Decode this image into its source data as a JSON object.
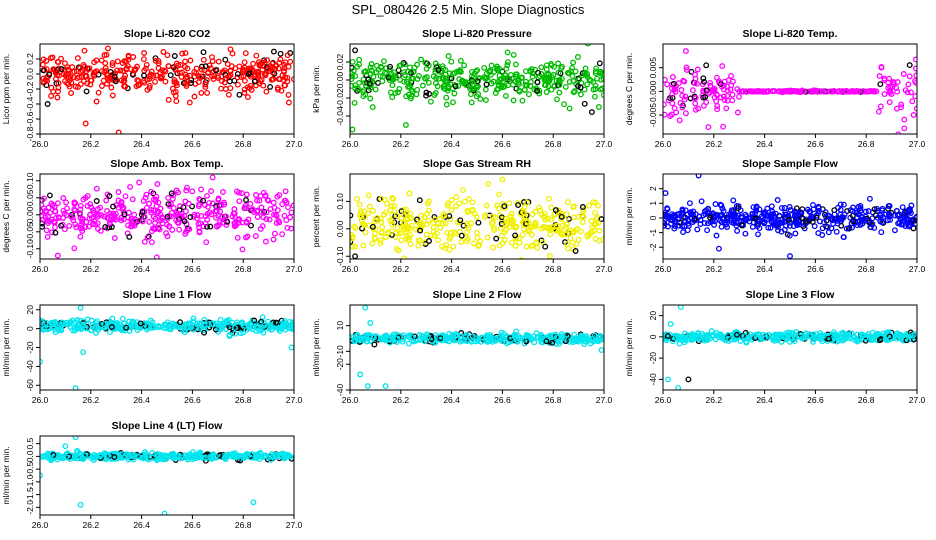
{
  "figure": {
    "title": "SPL_080426  2.5 Min. Slope Diagnostics",
    "overlay_color": "#000000"
  },
  "chart_data": [
    {
      "type": "scatter",
      "title": "Slope Li-820 CO2",
      "ylabel": "Licor ppm per min.",
      "xlim": [
        26.0,
        27.0
      ],
      "ylim": [
        -0.8,
        0.4
      ],
      "x_ticks": [
        "26.0",
        "26.2",
        "26.4",
        "26.6",
        "26.8",
        "27.0"
      ],
      "y_ticks": [
        {
          "value": -0.8,
          "label": "-0.8"
        },
        {
          "value": -0.6,
          "label": "-0.6"
        },
        {
          "value": -0.4,
          "label": "-0.4"
        },
        {
          "value": -0.2,
          "label": "-0.2"
        },
        {
          "value": 0.0,
          "label": "0.0"
        },
        {
          "value": 0.2,
          "label": "0.2"
        }
      ],
      "series_color": "#ff0000",
      "spread": 0.14,
      "center": 0.0,
      "n_points": 420,
      "outliers": [
        {
          "x": 26.18,
          "y": -0.66,
          "color": "#ff0000"
        },
        {
          "x": 26.31,
          "y": -0.78,
          "color": "#ff0000"
        },
        {
          "x": 26.03,
          "y": -0.4,
          "color": "#000000"
        },
        {
          "x": 26.98,
          "y": -0.38,
          "color": "#ff0000"
        },
        {
          "x": 26.75,
          "y": 0.33,
          "color": "#ff0000"
        }
      ]
    },
    {
      "type": "scatter",
      "title": "Slope Li-820 Pressure",
      "ylabel": "kPa per min.",
      "xlim": [
        26.0,
        27.0
      ],
      "ylim": [
        -0.06,
        0.04
      ],
      "x_ticks": [
        "26.0",
        "26.2",
        "26.4",
        "26.6",
        "26.8",
        "27.0"
      ],
      "y_ticks": [
        {
          "value": -0.04,
          "label": "-0.04"
        },
        {
          "value": -0.02,
          "label": "-0.02"
        },
        {
          "value": 0.0,
          "label": "0.00"
        },
        {
          "value": 0.02,
          "label": "0.02"
        }
      ],
      "series_color": "#00bb00",
      "spread": 0.011,
      "center": 0.0,
      "n_points": 420,
      "outliers": [
        {
          "x": 26.01,
          "y": -0.055,
          "color": "#00bb00"
        },
        {
          "x": 26.22,
          "y": -0.05,
          "color": "#00bb00"
        },
        {
          "x": 26.02,
          "y": 0.033,
          "color": "#000000"
        },
        {
          "x": 26.98,
          "y": -0.03,
          "color": "#00bb00"
        }
      ]
    },
    {
      "type": "scatter",
      "title": "Slope Li-820 Temp.",
      "ylabel": "degrees C per min.",
      "xlim": [
        26.0,
        27.0
      ],
      "ylim": [
        -0.009,
        0.01
      ],
      "x_ticks": [
        "26.0",
        "26.2",
        "26.4",
        "26.6",
        "26.8",
        "27.0"
      ],
      "y_ticks": [
        {
          "value": -0.005,
          "label": "-0.005"
        },
        {
          "value": 0.0,
          "label": "0.000"
        },
        {
          "value": 0.005,
          "label": "0.005"
        }
      ],
      "series_color": "#ff00ff",
      "spread": 0.003,
      "center": 0.0,
      "n_points": 320,
      "quiet_window": [
        26.3,
        26.85
      ],
      "outliers": [
        {
          "x": 26.09,
          "y": 0.0085,
          "color": "#ff00ff"
        },
        {
          "x": 26.17,
          "y": 0.0055,
          "color": "#000000"
        },
        {
          "x": 26.95,
          "y": -0.0078,
          "color": "#ff00ff"
        },
        {
          "x": 26.86,
          "y": 0.005,
          "color": "#ff00ff"
        }
      ]
    },
    {
      "type": "scatter",
      "title": "Slope Amb. Box Temp.",
      "ylabel": "degrees C per min.",
      "xlim": [
        26.0,
        27.0
      ],
      "ylim": [
        -0.13,
        0.12
      ],
      "x_ticks": [
        "26.0",
        "26.2",
        "26.4",
        "26.6",
        "26.8",
        "27.0"
      ],
      "y_ticks": [
        {
          "value": -0.1,
          "label": "-0.10"
        },
        {
          "value": -0.05,
          "label": "-0.05"
        },
        {
          "value": 0.0,
          "label": "0.00"
        },
        {
          "value": 0.05,
          "label": "0.05"
        },
        {
          "value": 0.1,
          "label": "0.10"
        }
      ],
      "series_color": "#ff00ff",
      "spread": 0.035,
      "center": 0.0,
      "n_points": 420,
      "outliers": [
        {
          "x": 26.07,
          "y": -0.12,
          "color": "#ff00ff"
        },
        {
          "x": 26.68,
          "y": 0.11,
          "color": "#ff00ff"
        },
        {
          "x": 26.46,
          "y": -0.125,
          "color": "#ff00ff"
        },
        {
          "x": 26.39,
          "y": 0.095,
          "color": "#ff00ff"
        }
      ]
    },
    {
      "type": "scatter",
      "title": "Slope Gas Stream RH",
      "ylabel": "percent per min.",
      "xlim": [
        26.0,
        27.0
      ],
      "ylim": [
        -0.11,
        0.2
      ],
      "x_ticks": [
        "26.0",
        "26.2",
        "26.4",
        "26.6",
        "26.8",
        "27.0"
      ],
      "y_ticks": [
        {
          "value": -0.1,
          "label": "-0.10"
        },
        {
          "value": 0.0,
          "label": "0.00"
        },
        {
          "value": 0.1,
          "label": "0.10"
        }
      ],
      "series_color": "#f0f000",
      "spread": 0.05,
      "center": 0.02,
      "n_points": 420,
      "outliers": [
        {
          "x": 26.02,
          "y": -0.1,
          "color": "#000000"
        },
        {
          "x": 26.6,
          "y": 0.18,
          "color": "#f0f000"
        }
      ]
    },
    {
      "type": "scatter",
      "title": "Slope Sample Flow",
      "ylabel": "ml/min per min.",
      "xlim": [
        26.0,
        27.0
      ],
      "ylim": [
        -2.8,
        3.0
      ],
      "x_ticks": [
        "26.0",
        "26.2",
        "26.4",
        "26.6",
        "26.8",
        "27.0"
      ],
      "y_ticks": [
        {
          "value": -2,
          "label": "-2"
        },
        {
          "value": -1,
          "label": "-1"
        },
        {
          "value": 0,
          "label": "0"
        },
        {
          "value": 1,
          "label": "1"
        },
        {
          "value": 2,
          "label": "2"
        }
      ],
      "series_color": "#0000ff",
      "spread": 0.45,
      "center": 0.0,
      "n_points": 480,
      "outliers": [
        {
          "x": 26.14,
          "y": 2.9,
          "color": "#0000ff"
        },
        {
          "x": 26.5,
          "y": -2.6,
          "color": "#0000ff"
        },
        {
          "x": 26.22,
          "y": -2.1,
          "color": "#0000ff"
        },
        {
          "x": 26.01,
          "y": 1.7,
          "color": "#0000ff"
        }
      ]
    },
    {
      "type": "scatter",
      "title": "Slope Line 1 Flow",
      "ylabel": "ml/min per min.",
      "xlim": [
        26.0,
        27.0
      ],
      "ylim": [
        -65,
        25
      ],
      "x_ticks": [
        "26.0",
        "26.2",
        "26.4",
        "26.6",
        "26.8",
        "27.0"
      ],
      "y_ticks": [
        {
          "value": -60,
          "label": "-60"
        },
        {
          "value": -40,
          "label": "-40"
        },
        {
          "value": -20,
          "label": "-20"
        },
        {
          "value": 0,
          "label": "0"
        },
        {
          "value": 20,
          "label": "20"
        }
      ],
      "series_color": "#00e5ee",
      "spread": 3.0,
      "center": 3.0,
      "n_points": 420,
      "outliers": [
        {
          "x": 26.0,
          "y": -35,
          "color": "#00e5ee"
        },
        {
          "x": 26.14,
          "y": -63,
          "color": "#00e5ee"
        },
        {
          "x": 26.17,
          "y": -25,
          "color": "#00e5ee"
        },
        {
          "x": 26.16,
          "y": 22,
          "color": "#00e5ee"
        },
        {
          "x": 26.99,
          "y": -20,
          "color": "#00e5ee"
        }
      ]
    },
    {
      "type": "scatter",
      "title": "Slope Line 2 Flow",
      "ylabel": "ml/min per min.",
      "xlim": [
        26.0,
        27.0
      ],
      "ylim": [
        -40,
        26
      ],
      "x_ticks": [
        "26.0",
        "26.2",
        "26.4",
        "26.6",
        "26.8",
        "27.0"
      ],
      "y_ticks": [
        {
          "value": -40,
          "label": "-40"
        },
        {
          "value": -20,
          "label": "-20"
        },
        {
          "value": -10,
          "label": "-10"
        },
        {
          "value": 10,
          "label": "10"
        }
      ],
      "series_color": "#00e5ee",
      "spread": 1.6,
      "center": 0.0,
      "n_points": 420,
      "outliers": [
        {
          "x": 26.06,
          "y": 24,
          "color": "#00e5ee"
        },
        {
          "x": 26.07,
          "y": -37,
          "color": "#00e5ee"
        },
        {
          "x": 26.14,
          "y": -37,
          "color": "#00e5ee"
        },
        {
          "x": 26.04,
          "y": -28,
          "color": "#00e5ee"
        },
        {
          "x": 26.99,
          "y": -9,
          "color": "#00e5ee"
        },
        {
          "x": 26.08,
          "y": 12,
          "color": "#00e5ee"
        }
      ]
    },
    {
      "type": "scatter",
      "title": "Slope Line 3 Flow",
      "ylabel": "ml/min per min.",
      "xlim": [
        26.0,
        27.0
      ],
      "ylim": [
        -50,
        30
      ],
      "x_ticks": [
        "26.0",
        "26.2",
        "26.4",
        "26.6",
        "26.8",
        "27.0"
      ],
      "y_ticks": [
        {
          "value": -40,
          "label": "-40"
        },
        {
          "value": -20,
          "label": "-20"
        },
        {
          "value": 0,
          "label": "0"
        },
        {
          "value": 20,
          "label": "20"
        }
      ],
      "series_color": "#00e5ee",
      "spread": 2.2,
      "center": 0.0,
      "n_points": 420,
      "outliers": [
        {
          "x": 26.07,
          "y": 28,
          "color": "#00e5ee"
        },
        {
          "x": 26.02,
          "y": -40,
          "color": "#00e5ee"
        },
        {
          "x": 26.06,
          "y": -48,
          "color": "#00e5ee"
        },
        {
          "x": 26.1,
          "y": -40,
          "color": "#000000"
        },
        {
          "x": 26.03,
          "y": 12,
          "color": "#00e5ee"
        }
      ]
    },
    {
      "type": "scatter",
      "title": "Slope Line 4 (LT) Flow",
      "ylabel": "ml/min per min.",
      "xlim": [
        26.0,
        27.0
      ],
      "ylim": [
        -2.3,
        0.8
      ],
      "x_ticks": [
        "26.0",
        "26.2",
        "26.4",
        "26.6",
        "26.8",
        "27.0"
      ],
      "y_ticks": [
        {
          "value": -2.0,
          "label": "-2.0"
        },
        {
          "value": -1.5,
          "label": "-1.5"
        },
        {
          "value": -1.0,
          "label": "-1.0"
        },
        {
          "value": -0.5,
          "label": "-0.5"
        },
        {
          "value": 0.0,
          "label": "0.0"
        },
        {
          "value": 0.5,
          "label": "0.5"
        }
      ],
      "series_color": "#00e5ee",
      "spread": 0.07,
      "center": 0.0,
      "n_points": 420,
      "outliers": [
        {
          "x": 26.0,
          "y": -0.75,
          "color": "#00e5ee"
        },
        {
          "x": 26.14,
          "y": 0.75,
          "color": "#00e5ee"
        },
        {
          "x": 26.16,
          "y": -1.9,
          "color": "#00e5ee"
        },
        {
          "x": 26.49,
          "y": -2.25,
          "color": "#00e5ee"
        },
        {
          "x": 26.84,
          "y": -1.8,
          "color": "#00e5ee"
        },
        {
          "x": 26.1,
          "y": 0.4,
          "color": "#00e5ee"
        }
      ]
    }
  ]
}
